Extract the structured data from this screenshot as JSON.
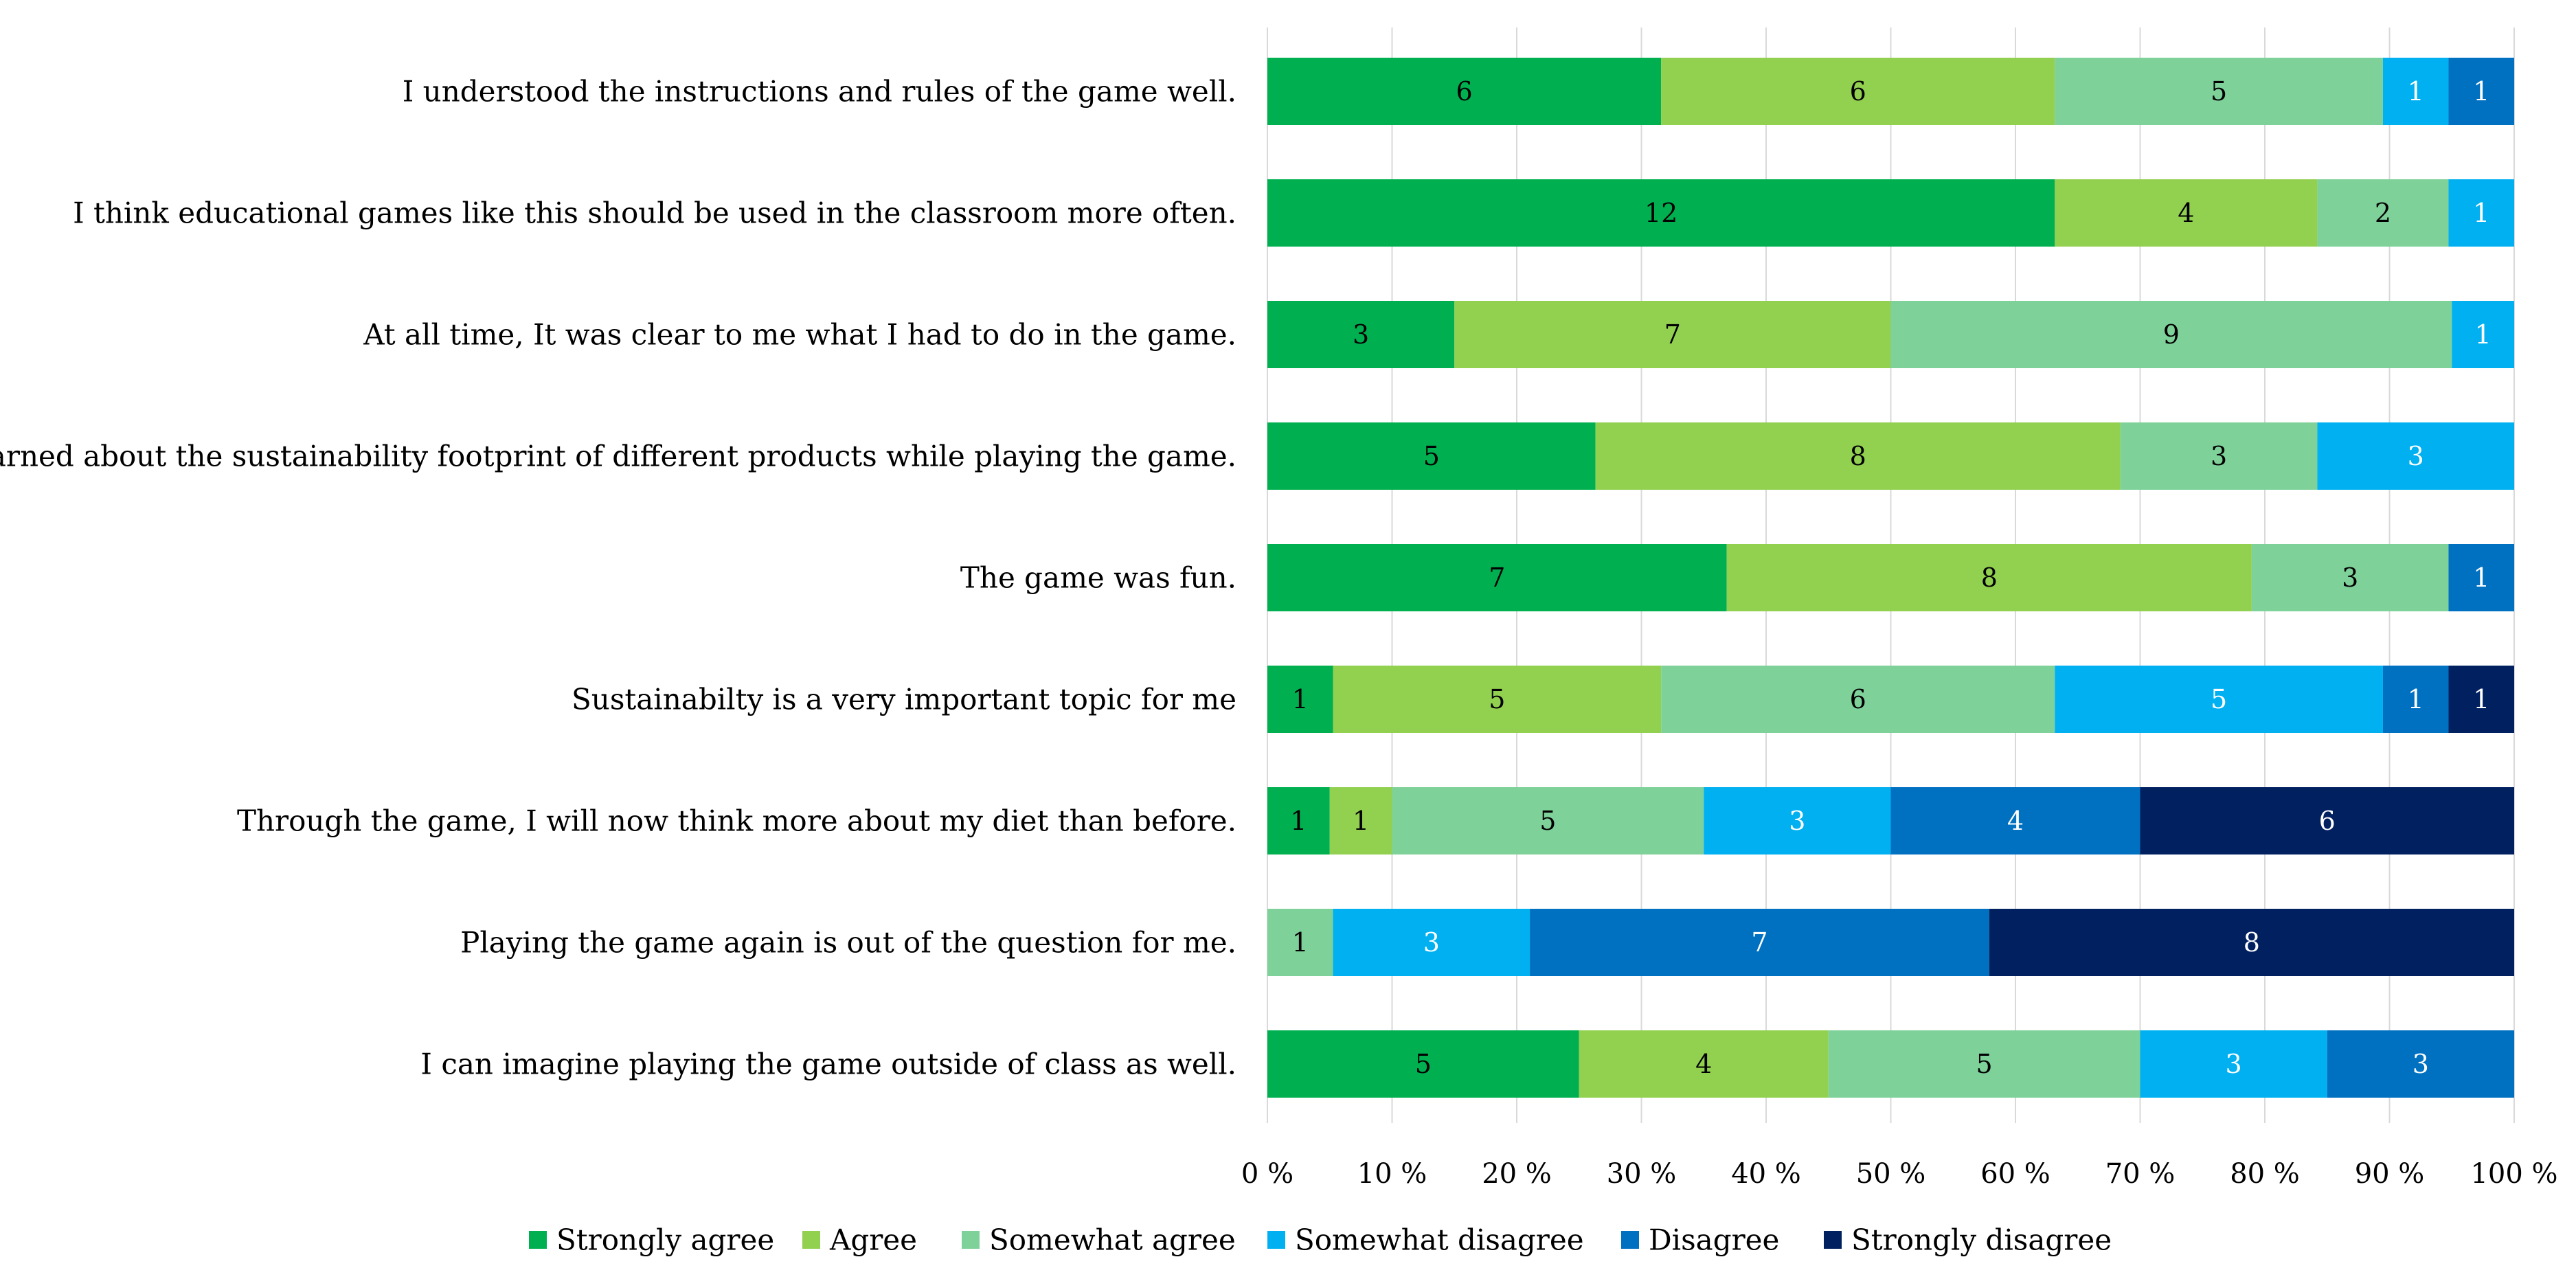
{
  "chart_data": {
    "type": "bar",
    "orientation": "horizontal",
    "stacked": "percent",
    "title": "",
    "xlabel": "",
    "ylabel": "",
    "xlim": [
      0,
      100
    ],
    "x_ticks": [
      0,
      10,
      20,
      30,
      40,
      50,
      60,
      70,
      80,
      90,
      100
    ],
    "x_tick_labels": [
      "0 %",
      "10 %",
      "20 %",
      "30 %",
      "40 %",
      "50 %",
      "60 %",
      "70 %",
      "80 %",
      "90 %",
      "100 %"
    ],
    "grid": true,
    "legend_position": "bottom",
    "categories": [
      "I understood the instructions and rules of the game well.",
      "I think educational games like this should be used in the classroom more often.",
      "At all time, It was clear to me what I had to do in the game.",
      "I learned about the sustainability footprint of different products while playing the game.",
      "The game was fun.",
      "Sustainabilty is a very important topic for me",
      "Through the game, I will now think more about my diet than before.",
      "Playing the game again is out of the question for me.",
      "I can imagine playing the game outside of class as well."
    ],
    "series": [
      {
        "name": "Strongly agree",
        "color": "#00b050",
        "label_color": "#000000",
        "values": [
          6,
          12,
          3,
          5,
          7,
          1,
          1,
          0,
          5
        ]
      },
      {
        "name": "Agree",
        "color": "#92d050",
        "label_color": "#000000",
        "values": [
          6,
          4,
          7,
          8,
          8,
          5,
          1,
          0,
          4
        ]
      },
      {
        "name": "Somewhat agree",
        "color": "#7fd19a",
        "label_color": "#000000",
        "values": [
          5,
          2,
          9,
          3,
          3,
          6,
          5,
          1,
          5
        ]
      },
      {
        "name": "Somewhat disagree",
        "color": "#00b0f0",
        "label_color": "#ffffff",
        "values": [
          1,
          1,
          1,
          3,
          0,
          5,
          3,
          3,
          3
        ]
      },
      {
        "name": "Disagree",
        "color": "#0070c0",
        "label_color": "#ffffff",
        "values": [
          1,
          0,
          0,
          0,
          1,
          1,
          4,
          7,
          3
        ]
      },
      {
        "name": "Strongly disagree",
        "color": "#002060",
        "label_color": "#ffffff",
        "values": [
          0,
          0,
          0,
          0,
          0,
          1,
          6,
          8,
          0
        ]
      }
    ]
  }
}
